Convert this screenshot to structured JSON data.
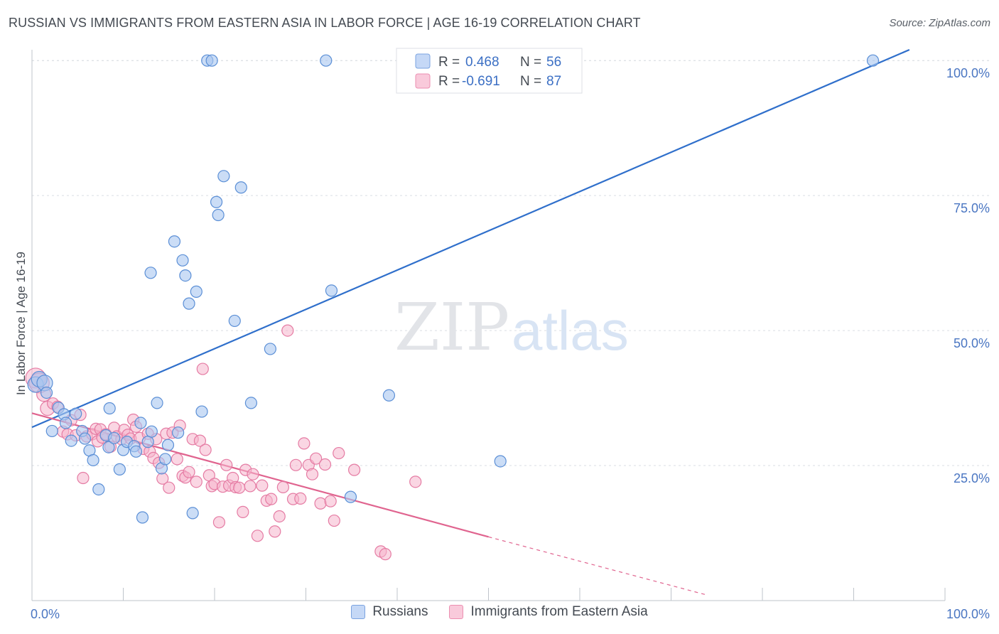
{
  "header": {
    "title": "RUSSIAN VS IMMIGRANTS FROM EASTERN ASIA IN LABOR FORCE | AGE 16-19 CORRELATION CHART",
    "source": "Source: ZipAtlas.com"
  },
  "watermark": {
    "zip": "ZIP",
    "atlas": "atlas"
  },
  "colors": {
    "blue_fill": "#a9c6f0",
    "blue_stroke": "#5b8fd6",
    "blue_line": "#2f6fcb",
    "pink_fill": "#f6b5cc",
    "pink_stroke": "#e57ba3",
    "pink_line": "#e0648f",
    "grid": "#d9dde3",
    "axis_label": "#4a76c2"
  },
  "chart_data": {
    "type": "scatter",
    "title": "RUSSIAN VS IMMIGRANTS FROM EASTERN ASIA IN LABOR FORCE | AGE 16-19 CORRELATION CHART",
    "xlabel": "",
    "ylabel": "In Labor Force | Age 16-19",
    "xlim": [
      0,
      100
    ],
    "ylim": [
      0,
      102
    ],
    "x_tick_labels": [
      "0.0%",
      "100.0%"
    ],
    "y_ticks": [
      25,
      50,
      75,
      100
    ],
    "y_tick_labels": [
      "25.0%",
      "50.0%",
      "75.0%",
      "100.0%"
    ],
    "grid": true,
    "legend_position": "top-center",
    "stats": [
      {
        "r_label": "R =",
        "r": "0.468",
        "n_label": "N =",
        "n": "56"
      },
      {
        "r_label": "R =",
        "r": "-0.691",
        "n_label": "N =",
        "n": "87"
      }
    ],
    "series": [
      {
        "name": "Russians",
        "color": "#a9c6f0",
        "trend": {
          "x": [
            0,
            96.1
          ],
          "y": [
            32.1,
            102.0
          ]
        },
        "points": [
          [
            0.4,
            40.0
          ],
          [
            0.8,
            41.0
          ],
          [
            1.4,
            40.3
          ],
          [
            1.6,
            38.5
          ],
          [
            2.2,
            31.4
          ],
          [
            2.9,
            35.7
          ],
          [
            3.5,
            34.5
          ],
          [
            3.7,
            32.9
          ],
          [
            4.3,
            29.6
          ],
          [
            4.8,
            34.6
          ],
          [
            5.5,
            31.4
          ],
          [
            5.8,
            30.0
          ],
          [
            6.3,
            27.8
          ],
          [
            6.7,
            26.0
          ],
          [
            7.3,
            20.6
          ],
          [
            8.1,
            30.6
          ],
          [
            8.4,
            28.4
          ],
          [
            8.5,
            35.6
          ],
          [
            9.0,
            30.1
          ],
          [
            9.6,
            24.3
          ],
          [
            10.0,
            27.9
          ],
          [
            10.4,
            29.4
          ],
          [
            11.2,
            28.6
          ],
          [
            11.4,
            27.6
          ],
          [
            11.9,
            32.9
          ],
          [
            12.1,
            15.4
          ],
          [
            12.7,
            29.4
          ],
          [
            13.0,
            60.7
          ],
          [
            13.1,
            31.3
          ],
          [
            13.7,
            36.6
          ],
          [
            14.2,
            24.5
          ],
          [
            14.6,
            26.2
          ],
          [
            14.9,
            28.8
          ],
          [
            15.6,
            66.5
          ],
          [
            16.0,
            31.1
          ],
          [
            16.5,
            63.0
          ],
          [
            16.8,
            60.2
          ],
          [
            17.2,
            55.0
          ],
          [
            17.6,
            16.2
          ],
          [
            18.0,
            57.2
          ],
          [
            18.6,
            35.0
          ],
          [
            19.2,
            100.0
          ],
          [
            19.7,
            100.0
          ],
          [
            20.2,
            73.8
          ],
          [
            20.4,
            71.4
          ],
          [
            21.0,
            78.6
          ],
          [
            22.2,
            51.8
          ],
          [
            22.9,
            76.5
          ],
          [
            24.0,
            36.6
          ],
          [
            26.1,
            46.6
          ],
          [
            32.2,
            100.0
          ],
          [
            32.8,
            57.4
          ],
          [
            34.9,
            19.2
          ],
          [
            39.1,
            38.0
          ],
          [
            51.3,
            25.8
          ],
          [
            92.1,
            100.0
          ]
        ]
      },
      {
        "name": "Immigrants from Eastern Asia",
        "color": "#f6b5cc",
        "trend": {
          "x": [
            0,
            50.0
          ],
          "y": [
            34.7,
            11.8
          ]
        },
        "trend_dashed": {
          "x": [
            50.0,
            74.0
          ],
          "y": [
            11.8,
            1.0
          ]
        },
        "points": [
          [
            0.4,
            41.2
          ],
          [
            0.8,
            40.3
          ],
          [
            1.3,
            38.2
          ],
          [
            1.7,
            35.6
          ],
          [
            2.3,
            36.5
          ],
          [
            2.8,
            35.9
          ],
          [
            3.4,
            31.3
          ],
          [
            3.9,
            30.8
          ],
          [
            4.3,
            33.4
          ],
          [
            4.8,
            30.6
          ],
          [
            5.3,
            34.4
          ],
          [
            5.6,
            22.7
          ],
          [
            6.0,
            30.4
          ],
          [
            6.6,
            30.8
          ],
          [
            7.0,
            31.8
          ],
          [
            7.2,
            29.5
          ],
          [
            7.5,
            31.7
          ],
          [
            7.7,
            30.2
          ],
          [
            8.1,
            30.8
          ],
          [
            8.6,
            28.5
          ],
          [
            9.0,
            32.0
          ],
          [
            9.3,
            30.4
          ],
          [
            9.8,
            29.9
          ],
          [
            10.1,
            31.6
          ],
          [
            10.5,
            30.7
          ],
          [
            10.8,
            30.0
          ],
          [
            11.1,
            33.5
          ],
          [
            11.4,
            32.2
          ],
          [
            11.8,
            30.1
          ],
          [
            12.2,
            28.1
          ],
          [
            12.7,
            30.9
          ],
          [
            12.9,
            27.6
          ],
          [
            13.3,
            26.4
          ],
          [
            13.6,
            29.9
          ],
          [
            13.9,
            25.5
          ],
          [
            14.3,
            22.6
          ],
          [
            14.7,
            30.9
          ],
          [
            15.0,
            20.9
          ],
          [
            15.4,
            31.1
          ],
          [
            15.9,
            26.2
          ],
          [
            16.2,
            32.4
          ],
          [
            16.5,
            23.1
          ],
          [
            16.8,
            22.8
          ],
          [
            17.2,
            23.8
          ],
          [
            17.6,
            29.9
          ],
          [
            18.0,
            22.0
          ],
          [
            18.4,
            29.6
          ],
          [
            18.7,
            42.9
          ],
          [
            19.0,
            27.9
          ],
          [
            19.4,
            23.2
          ],
          [
            19.7,
            21.2
          ],
          [
            20.0,
            21.6
          ],
          [
            20.5,
            14.5
          ],
          [
            20.9,
            21.1
          ],
          [
            21.3,
            25.1
          ],
          [
            21.6,
            21.3
          ],
          [
            22.0,
            22.7
          ],
          [
            22.3,
            21.0
          ],
          [
            22.7,
            20.9
          ],
          [
            23.1,
            16.4
          ],
          [
            23.4,
            24.2
          ],
          [
            23.9,
            21.2
          ],
          [
            24.2,
            23.4
          ],
          [
            24.7,
            12.0
          ],
          [
            25.2,
            21.3
          ],
          [
            25.7,
            18.5
          ],
          [
            26.2,
            18.8
          ],
          [
            26.6,
            12.8
          ],
          [
            27.1,
            15.6
          ],
          [
            27.5,
            21.0
          ],
          [
            28.0,
            50.0
          ],
          [
            28.6,
            18.8
          ],
          [
            28.9,
            25.1
          ],
          [
            29.4,
            18.9
          ],
          [
            29.8,
            29.1
          ],
          [
            30.3,
            25.1
          ],
          [
            30.7,
            23.4
          ],
          [
            31.1,
            26.3
          ],
          [
            31.6,
            18.0
          ],
          [
            32.1,
            25.2
          ],
          [
            32.7,
            18.4
          ],
          [
            33.1,
            14.8
          ],
          [
            33.6,
            27.3
          ],
          [
            35.3,
            24.2
          ],
          [
            38.2,
            9.1
          ],
          [
            38.7,
            8.6
          ],
          [
            42.0,
            22.0
          ]
        ]
      }
    ]
  },
  "bottom_legend": [
    {
      "label": "Russians"
    },
    {
      "label": "Immigrants from Eastern Asia"
    }
  ]
}
